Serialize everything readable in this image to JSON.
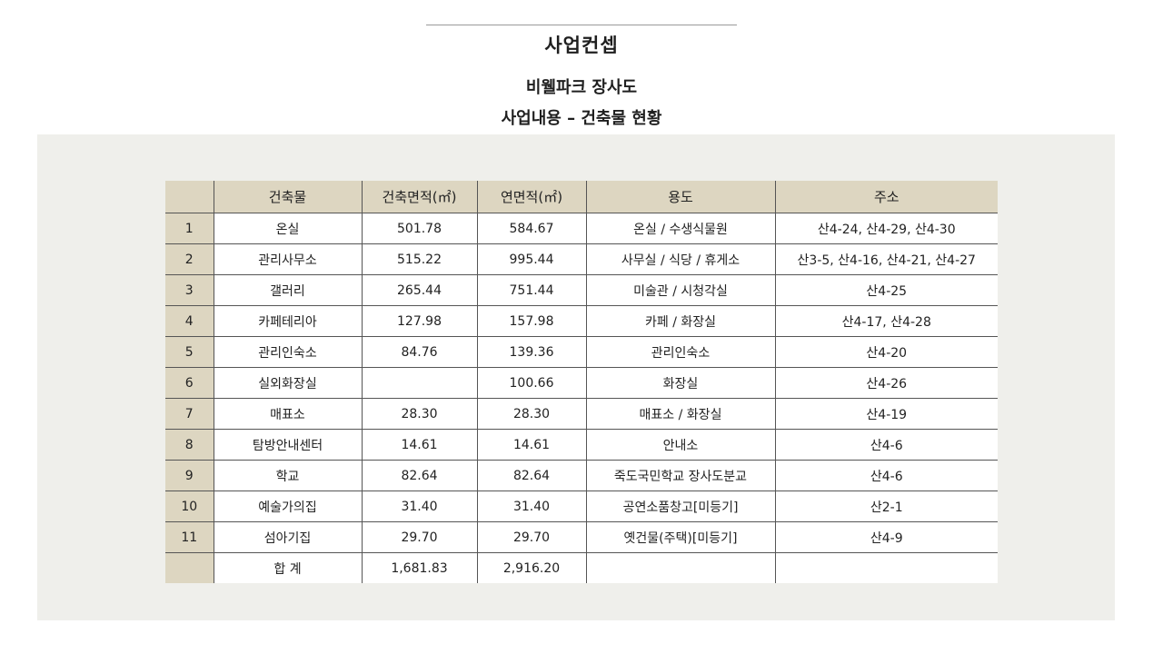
{
  "header": {
    "page_title": "사업컨셉",
    "subtitle": "비웰파크 장사도",
    "section_title": "사업내용 – 건축물 현황"
  },
  "table": {
    "columns": [
      "",
      "건축물",
      "건축면적(㎡)",
      "연면적(㎡)",
      "용도",
      "주소"
    ],
    "rows": [
      {
        "no": "1",
        "name": "온실",
        "building_area": "501.78",
        "total_area": "584.67",
        "use": "온실 / 수생식물원",
        "address": "산4-24, 산4-29, 산4-30"
      },
      {
        "no": "2",
        "name": "관리사무소",
        "building_area": "515.22",
        "total_area": "995.44",
        "use": "사무실 / 식당 / 휴게소",
        "address": "산3-5, 산4-16, 산4-21, 산4-27"
      },
      {
        "no": "3",
        "name": "갤러리",
        "building_area": "265.44",
        "total_area": "751.44",
        "use": "미술관 / 시청각실",
        "address": "산4-25"
      },
      {
        "no": "4",
        "name": "카페테리아",
        "building_area": "127.98",
        "total_area": "157.98",
        "use": "카페 / 화장실",
        "address": "산4-17, 산4-28"
      },
      {
        "no": "5",
        "name": "관리인숙소",
        "building_area": "84.76",
        "total_area": "139.36",
        "use": "관리인숙소",
        "address": "산4-20"
      },
      {
        "no": "6",
        "name": "실외화장실",
        "building_area": "",
        "total_area": "100.66",
        "use": "화장실",
        "address": "산4-26"
      },
      {
        "no": "7",
        "name": "매표소",
        "building_area": "28.30",
        "total_area": "28.30",
        "use": "매표소 / 화장실",
        "address": "산4-19"
      },
      {
        "no": "8",
        "name": "탐방안내센터",
        "building_area": "14.61",
        "total_area": "14.61",
        "use": "안내소",
        "address": "산4-6"
      },
      {
        "no": "9",
        "name": "학교",
        "building_area": "82.64",
        "total_area": "82.64",
        "use": "죽도국민학교 장사도분교",
        "address": "산4-6"
      },
      {
        "no": "10",
        "name": "예술가의집",
        "building_area": "31.40",
        "total_area": "31.40",
        "use": "공연소품창고[미등기]",
        "address": "산2-1"
      },
      {
        "no": "11",
        "name": "섬아기집",
        "building_area": "29.70",
        "total_area": "29.70",
        "use": "옛건물(주택)[미등기]",
        "address": "산4-9"
      }
    ],
    "total": {
      "label": "합 계",
      "building_area": "1,681.83",
      "total_area": "2,916.20"
    }
  },
  "colors": {
    "header_fill": "#ddd6c1",
    "panel_background": "#efefeb",
    "rule_line": "#555555"
  }
}
